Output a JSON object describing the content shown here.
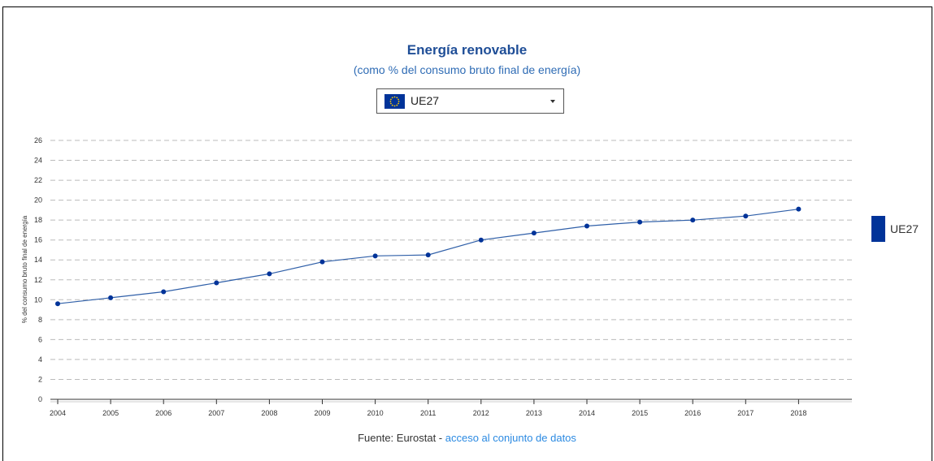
{
  "colors": {
    "series": "#003399",
    "line": "#2f5fa8",
    "grid": "#bbbbbb",
    "title": "#1f4e97",
    "link": "#2b8ae2"
  },
  "selector": {
    "value": "UE27",
    "flag_icon": "eu-flag-icon"
  },
  "source": {
    "prefix": "Fuente: Eurostat - ",
    "link_text": "acceso al conjunto de datos"
  },
  "chart_data": {
    "type": "line",
    "title": "Energía renovable",
    "subtitle": "(como % del consumo bruto final de energía)",
    "xlabel": "",
    "ylabel": "% del consumo bruto final de energía",
    "ylim": [
      0,
      26
    ],
    "y_ticks": [
      0,
      2,
      4,
      6,
      8,
      10,
      12,
      14,
      16,
      18,
      20,
      22,
      24,
      26
    ],
    "grid": true,
    "legend_position": "right",
    "categories": [
      "2004",
      "2005",
      "2006",
      "2007",
      "2008",
      "2009",
      "2010",
      "2011",
      "2012",
      "2013",
      "2014",
      "2015",
      "2016",
      "2017",
      "2018"
    ],
    "series": [
      {
        "name": "UE27",
        "values": [
          9.6,
          10.2,
          10.8,
          11.7,
          12.6,
          13.8,
          14.4,
          14.5,
          16.0,
          16.7,
          17.4,
          17.8,
          18.0,
          18.4,
          19.1
        ]
      }
    ]
  }
}
